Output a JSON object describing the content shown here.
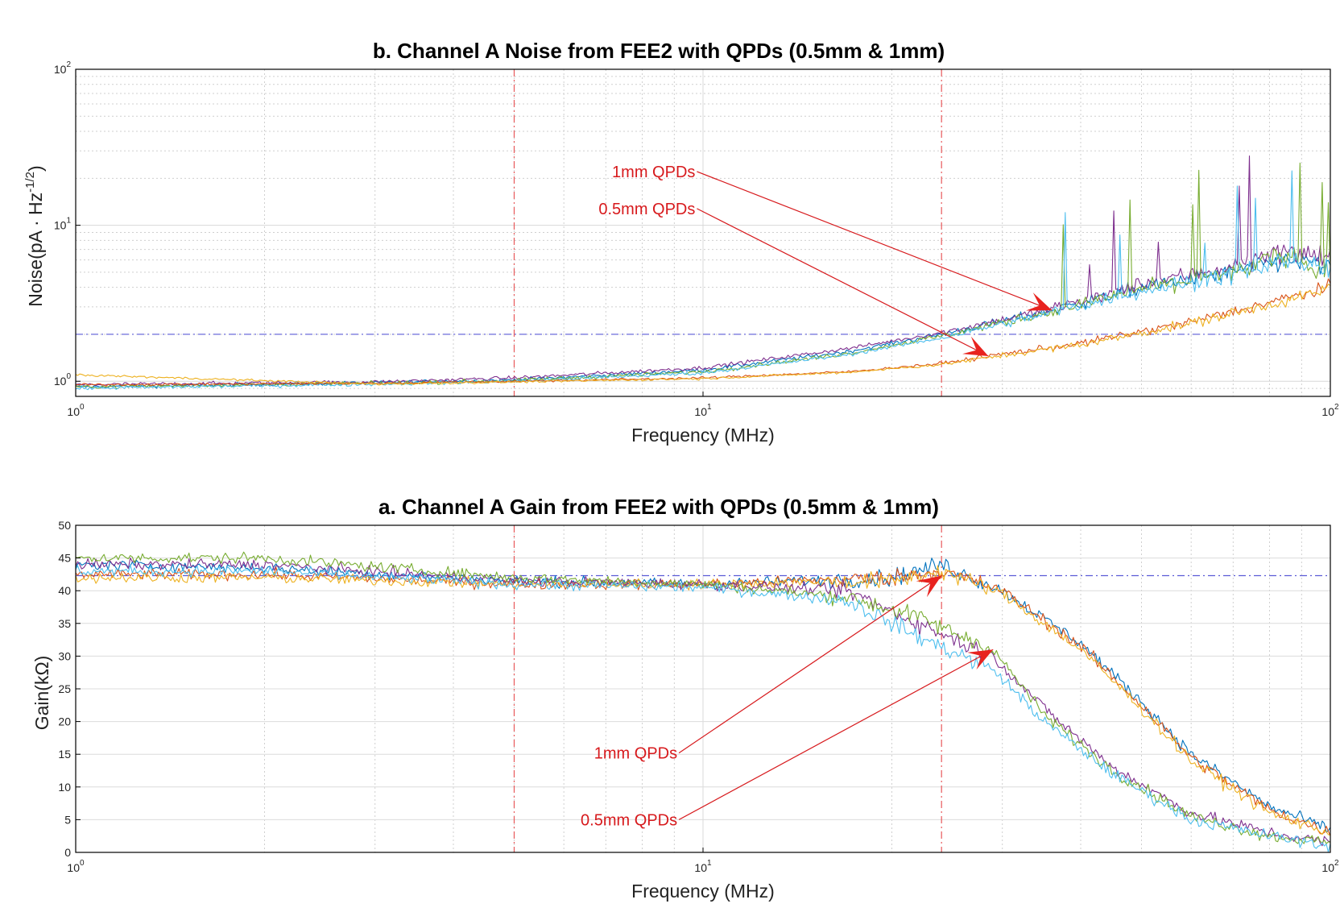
{
  "chart_data": [
    {
      "type": "line",
      "title": "b. Channel A Noise from FEE2 with QPDs (0.5mm & 1mm)",
      "xlabel": "Frequency (MHz)",
      "ylabel_main": "Noise(pA · Hz",
      "ylabel_sup": "-1/2",
      "ylabel_end": ")",
      "xscale": "log",
      "yscale": "log",
      "xlim": [
        1,
        100
      ],
      "ylim": [
        0.8,
        100
      ],
      "x_ticks": [
        {
          "base": "10",
          "exp": "0",
          "value": 1
        },
        {
          "base": "10",
          "exp": "1",
          "value": 10
        },
        {
          "base": "10",
          "exp": "2",
          "value": 100
        }
      ],
      "y_ticks": [
        {
          "base": "10",
          "exp": "0",
          "value": 1
        },
        {
          "base": "10",
          "exp": "1",
          "value": 10
        },
        {
          "base": "10",
          "exp": "2",
          "value": 100
        }
      ],
      "grid": true,
      "reference_lines": {
        "vertical": [
          5,
          24
        ],
        "horizontal": [
          2
        ]
      },
      "reference_colors": {
        "vertical": "#e8585a",
        "horizontal": "#5b5bd6"
      },
      "annotations": [
        {
          "text": "1mm QPDs",
          "label_at": [
            9.72,
            22.1
          ],
          "arrow_to": [
            36,
            2.85
          ]
        },
        {
          "text": "0.5mm QPDs",
          "label_at": [
            9.72,
            12.8
          ],
          "arrow_to": [
            28.5,
            1.45
          ]
        }
      ],
      "series": [
        {
          "color": "#0072bd",
          "group": "1mm",
          "points": [
            [
              1,
              0.92
            ],
            [
              3,
              0.98
            ],
            [
              5,
              1.02
            ],
            [
              10,
              1.18
            ],
            [
              17,
              1.55
            ],
            [
              24,
              2.0
            ],
            [
              36,
              2.85
            ],
            [
              50,
              4.0
            ],
            [
              70,
              5.0
            ],
            [
              85,
              6.0
            ],
            [
              100,
              5.5
            ]
          ]
        },
        {
          "color": "#7e2f8e",
          "group": "1mm",
          "points": [
            [
              1,
              0.95
            ],
            [
              3,
              0.99
            ],
            [
              5,
              1.05
            ],
            [
              10,
              1.22
            ],
            [
              17,
              1.62
            ],
            [
              24,
              2.05
            ],
            [
              36,
              2.9
            ],
            [
              50,
              4.2
            ],
            [
              70,
              5.5
            ],
            [
              85,
              7.0
            ],
            [
              100,
              6.0
            ]
          ]
        },
        {
          "color": "#77ac30",
          "group": "1mm",
          "points": [
            [
              1,
              0.92
            ],
            [
              3,
              0.97
            ],
            [
              5,
              1.01
            ],
            [
              10,
              1.15
            ],
            [
              17,
              1.5
            ],
            [
              24,
              1.95
            ],
            [
              36,
              2.8
            ],
            [
              50,
              3.9
            ],
            [
              70,
              5.0
            ],
            [
              85,
              6.5
            ],
            [
              100,
              5.0
            ]
          ]
        },
        {
          "color": "#4dbeee",
          "group": "1mm",
          "points": [
            [
              1,
              0.9
            ],
            [
              3,
              0.96
            ],
            [
              5,
              1.0
            ],
            [
              10,
              1.13
            ],
            [
              17,
              1.48
            ],
            [
              24,
              1.9
            ],
            [
              36,
              2.75
            ],
            [
              50,
              3.8
            ],
            [
              70,
              4.8
            ],
            [
              85,
              6.0
            ],
            [
              100,
              5.2
            ]
          ]
        },
        {
          "color": "#d95319",
          "group": "0.5mm",
          "points": [
            [
              1,
              0.95
            ],
            [
              3,
              0.97
            ],
            [
              5,
              1.0
            ],
            [
              10,
              1.05
            ],
            [
              17,
              1.15
            ],
            [
              24,
              1.3
            ],
            [
              28.5,
              1.45
            ],
            [
              40,
              1.75
            ],
            [
              60,
              2.4
            ],
            [
              80,
              3.2
            ],
            [
              100,
              4.0
            ]
          ]
        },
        {
          "color": "#edb120",
          "group": "0.5mm",
          "points": [
            [
              1,
              1.1
            ],
            [
              3,
              0.96
            ],
            [
              5,
              0.99
            ],
            [
              10,
              1.04
            ],
            [
              17,
              1.14
            ],
            [
              24,
              1.28
            ],
            [
              28.5,
              1.42
            ],
            [
              40,
              1.72
            ],
            [
              60,
              2.35
            ],
            [
              80,
              3.1
            ],
            [
              100,
              3.9
            ]
          ]
        }
      ]
    },
    {
      "type": "line",
      "title": "a. Channel A Gain from FEE2 with QPDs (0.5mm & 1mm)",
      "xlabel": "Frequency (MHz)",
      "ylabel": "Gain(kΩ)",
      "xscale": "log",
      "yscale": "linear",
      "xlim": [
        1,
        100
      ],
      "ylim": [
        0,
        50
      ],
      "x_ticks": [
        {
          "base": "10",
          "exp": "0",
          "value": 1
        },
        {
          "base": "10",
          "exp": "1",
          "value": 10
        },
        {
          "base": "10",
          "exp": "2",
          "value": 100
        }
      ],
      "y_ticks": [
        "0",
        "5",
        "10",
        "15",
        "20",
        "25",
        "30",
        "35",
        "40",
        "45",
        "50"
      ],
      "grid": true,
      "reference_lines": {
        "vertical": [
          5,
          24
        ],
        "horizontal": [
          42.3
        ]
      },
      "reference_colors": {
        "vertical": "#e8585a",
        "horizontal": "#5b5bd6"
      },
      "annotations": [
        {
          "text": "1mm QPDs",
          "label_at": [
            9.1,
            15.2
          ],
          "arrow_to": [
            24,
            42.3
          ]
        },
        {
          "text": "0.5mm QPDs",
          "label_at": [
            9.1,
            5.0
          ],
          "arrow_to": [
            29,
            31.0
          ]
        }
      ],
      "series": [
        {
          "color": "#0072bd",
          "group": "1mm",
          "points": [
            [
              1,
              44.0
            ],
            [
              2,
              43.5
            ],
            [
              5,
              41.5
            ],
            [
              10,
              41.0
            ],
            [
              20,
              42.0
            ],
            [
              24,
              44.0
            ],
            [
              30,
              40.0
            ],
            [
              40,
              32.0
            ],
            [
              50,
              23.0
            ],
            [
              60,
              15.0
            ],
            [
              80,
              7.0
            ],
            [
              100,
              3.5
            ]
          ]
        },
        {
          "color": "#d95319",
          "group": "1mm",
          "points": [
            [
              1,
              42.5
            ],
            [
              2,
              42.5
            ],
            [
              5,
              41.0
            ],
            [
              10,
              41.0
            ],
            [
              20,
              42.0
            ],
            [
              24,
              43.0
            ],
            [
              30,
              40.0
            ],
            [
              40,
              31.5
            ],
            [
              50,
              22.5
            ],
            [
              60,
              14.5
            ],
            [
              80,
              6.5
            ],
            [
              100,
              3.0
            ]
          ]
        },
        {
          "color": "#edb120",
          "group": "1mm",
          "points": [
            [
              1,
              42.0
            ],
            [
              2,
              42.0
            ],
            [
              5,
              41.0
            ],
            [
              10,
              41.0
            ],
            [
              20,
              41.5
            ],
            [
              24,
              43.0
            ],
            [
              30,
              39.5
            ],
            [
              40,
              31.0
            ],
            [
              50,
              22.0
            ],
            [
              60,
              14.0
            ],
            [
              80,
              6.0
            ],
            [
              100,
              3.0
            ]
          ]
        },
        {
          "color": "#7e2f8e",
          "group": "0.5mm",
          "points": [
            [
              1,
              44.0
            ],
            [
              2,
              44.0
            ],
            [
              5,
              41.5
            ],
            [
              10,
              41.0
            ],
            [
              17,
              40.0
            ],
            [
              22,
              35.0
            ],
            [
              29,
              30.0
            ],
            [
              35,
              22.0
            ],
            [
              45,
              13.0
            ],
            [
              60,
              6.0
            ],
            [
              80,
              3.0
            ],
            [
              100,
              1.5
            ]
          ]
        },
        {
          "color": "#77ac30",
          "group": "0.5mm",
          "points": [
            [
              1,
              45.0
            ],
            [
              2,
              45.0
            ],
            [
              5,
              42.0
            ],
            [
              10,
              41.0
            ],
            [
              17,
              39.0
            ],
            [
              22,
              36.0
            ],
            [
              29,
              31.0
            ],
            [
              35,
              21.0
            ],
            [
              45,
              12.5
            ],
            [
              60,
              5.5
            ],
            [
              80,
              2.5
            ],
            [
              100,
              1.5
            ]
          ]
        },
        {
          "color": "#4dbeee",
          "group": "0.5mm",
          "points": [
            [
              1,
              43.0
            ],
            [
              2,
              43.0
            ],
            [
              5,
              41.0
            ],
            [
              10,
              40.5
            ],
            [
              17,
              38.5
            ],
            [
              22,
              33.0
            ],
            [
              29,
              28.0
            ],
            [
              35,
              20.0
            ],
            [
              45,
              12.0
            ],
            [
              60,
              5.0
            ],
            [
              80,
              2.5
            ],
            [
              100,
              1.0
            ]
          ]
        }
      ]
    }
  ]
}
